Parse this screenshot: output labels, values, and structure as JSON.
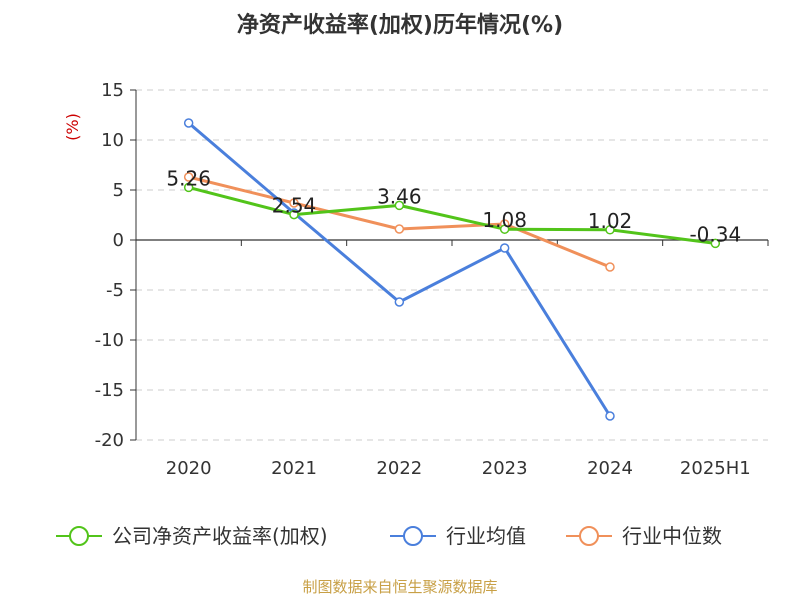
{
  "chart_data": {
    "type": "line",
    "title": "净资产收益率(加权)历年情况(%)",
    "ylabel": "(%)",
    "categories": [
      "2020",
      "2021",
      "2022",
      "2023",
      "2024",
      "2025H1"
    ],
    "ylim": [
      -20,
      15
    ],
    "yticks": [
      15,
      10,
      5,
      0,
      -5,
      -10,
      -15,
      -20
    ],
    "grid": true,
    "legend_position": "bottom",
    "series": [
      {
        "name": "公司净资产收益率(加权)",
        "color": "#52c41a",
        "values": [
          5.26,
          2.54,
          3.46,
          1.08,
          1.02,
          -0.34
        ],
        "labels": [
          "5.26",
          "2.54",
          "3.46",
          "1.08",
          "1.02",
          "-0.34"
        ]
      },
      {
        "name": "行业均值",
        "color": "#4a7fdc",
        "values": [
          11.7,
          2.7,
          -6.2,
          -0.8,
          -17.6,
          null
        ]
      },
      {
        "name": "行业中位数",
        "color": "#f0905a",
        "values": [
          6.3,
          3.7,
          1.1,
          1.6,
          -2.7,
          null
        ]
      }
    ]
  },
  "source": "制图数据来自恒生聚源数据库"
}
